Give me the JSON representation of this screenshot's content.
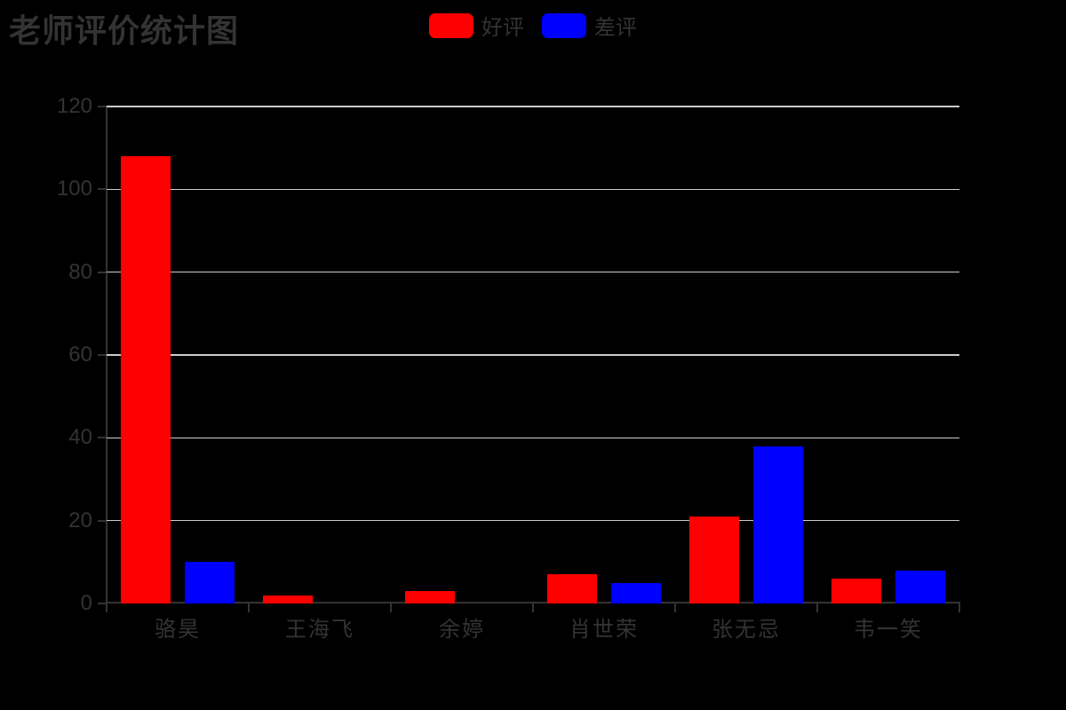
{
  "title": "老师评价统计图",
  "background_color": "#000000",
  "legend": [
    {
      "label": "好评",
      "color": "#ff0000"
    },
    {
      "label": "差评",
      "color": "#0000ff"
    }
  ],
  "colors": {
    "axis": "#333333",
    "grid": "#cccccc",
    "text": "#333333",
    "positive_bar": "#ff0000",
    "negative_bar": "#0000ff"
  },
  "chart_data": {
    "type": "bar",
    "title": "老师评价统计图",
    "categories": [
      "骆昊",
      "王海飞",
      "余婷",
      "肖世荣",
      "张无忌",
      "韦一笑"
    ],
    "series": [
      {
        "name": "好评",
        "color": "#ff0000",
        "values": [
          108,
          2,
          3,
          7,
          21,
          6
        ]
      },
      {
        "name": "差评",
        "color": "#0000ff",
        "values": [
          10,
          0,
          0,
          5,
          38,
          8
        ]
      }
    ],
    "xlabel": "",
    "ylabel": "",
    "ylim": [
      0,
      120
    ],
    "yticks": [
      0,
      20,
      40,
      60,
      80,
      100,
      120
    ],
    "grid": true,
    "legend_position": "top-center"
  }
}
